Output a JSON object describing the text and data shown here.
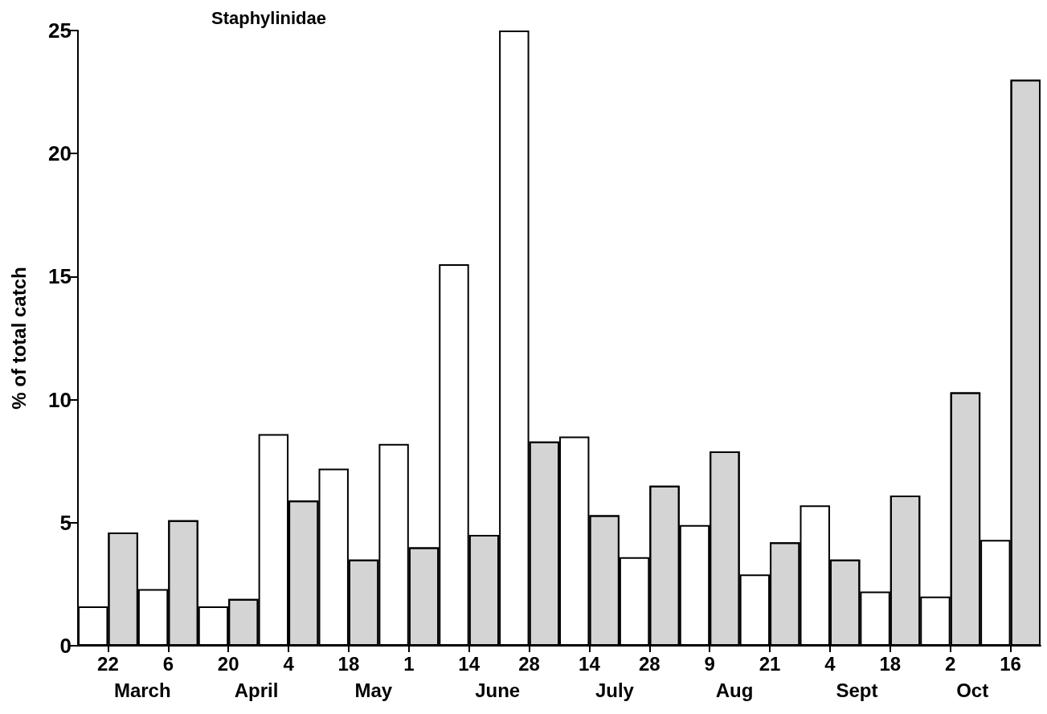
{
  "chart_data": {
    "type": "bar",
    "title": "Staphylinidae",
    "ylabel": "% of total catch",
    "categories": [
      "22",
      "6",
      "20",
      "4",
      "18",
      "1",
      "14",
      "28",
      "14",
      "28",
      "9",
      "21",
      "4",
      "18",
      "2",
      "16"
    ],
    "series": [
      {
        "color": "#ffffff",
        "values": [
          1.6,
          2.3,
          1.6,
          8.6,
          7.2,
          8.2,
          15.5,
          25,
          8.5,
          3.6,
          4.9,
          2.9,
          5.7,
          2.2,
          2.0,
          4.3
        ]
      },
      {
        "color": "#d4d4d4",
        "values": [
          4.6,
          5.1,
          1.9,
          5.9,
          3.5,
          4.0,
          4.5,
          8.3,
          5.3,
          6.5,
          7.9,
          4.2,
          3.5,
          6.1,
          10.3,
          23.0
        ]
      }
    ],
    "annotations": [
      "March",
      "April",
      "May",
      "June",
      "July",
      "Aug",
      "Sept",
      "Oct"
    ],
    "ylim": [
      0,
      25
    ],
    "yticks": [
      0,
      5,
      10,
      15,
      20,
      25
    ],
    "grid": false
  }
}
